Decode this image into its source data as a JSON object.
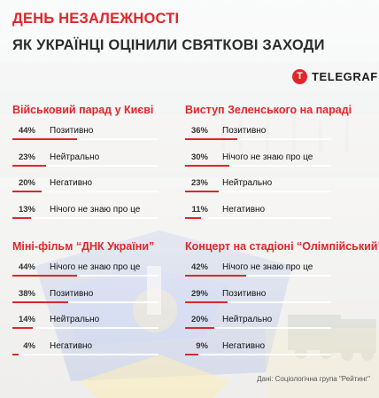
{
  "header": {
    "title": "ДЕНЬ НЕЗАЛЕЖНОСТІ",
    "subtitle": "ЯК УКРАЇНЦІ ОЦІНИЛИ СВЯТКОВІ ЗАХОДИ"
  },
  "logo": {
    "mark": "T",
    "text": "TELEGRAF"
  },
  "source": "Дані: Соціологічна група \"Рейтинг\"",
  "colors": {
    "accent": "#e0262a",
    "text": "#111111",
    "track": "#ffffff"
  },
  "chart_data": [
    {
      "type": "bar",
      "title": "Військовий парад у Києві",
      "categories": [
        "Позитивно",
        "Нейтрально",
        "Негативно",
        "Нічого не знаю про це"
      ],
      "values": [
        44,
        23,
        20,
        13
      ],
      "labels": [
        "44%",
        "23%",
        "20%",
        "13%"
      ],
      "ylim": [
        0,
        100
      ]
    },
    {
      "type": "bar",
      "title": "Виступ Зеленського на параді",
      "categories": [
        "Позитивно",
        "Нічого не знаю про це",
        "Нейтрально",
        "Негативно"
      ],
      "values": [
        36,
        30,
        23,
        11
      ],
      "labels": [
        "36%",
        "30%",
        "23%",
        "11%"
      ],
      "ylim": [
        0,
        100
      ]
    },
    {
      "type": "bar",
      "title": "Міні-фільм “ДНК України”",
      "categories": [
        "Нічого не знаю про це",
        "Позитивно",
        "Нейтрально",
        "Негативно"
      ],
      "values": [
        44,
        38,
        14,
        4
      ],
      "labels": [
        "44%",
        "38%",
        "14%",
        "4%"
      ],
      "ylim": [
        0,
        100
      ]
    },
    {
      "type": "bar",
      "title": "Концерт на стадіоні “Олімпійський”",
      "categories": [
        "Нічого не знаю про це",
        "Позитивно",
        "Нейтрально",
        "Негативно"
      ],
      "values": [
        42,
        29,
        20,
        9
      ],
      "labels": [
        "42%",
        "29%",
        "20%",
        "9%"
      ],
      "ylim": [
        0,
        100
      ]
    }
  ]
}
